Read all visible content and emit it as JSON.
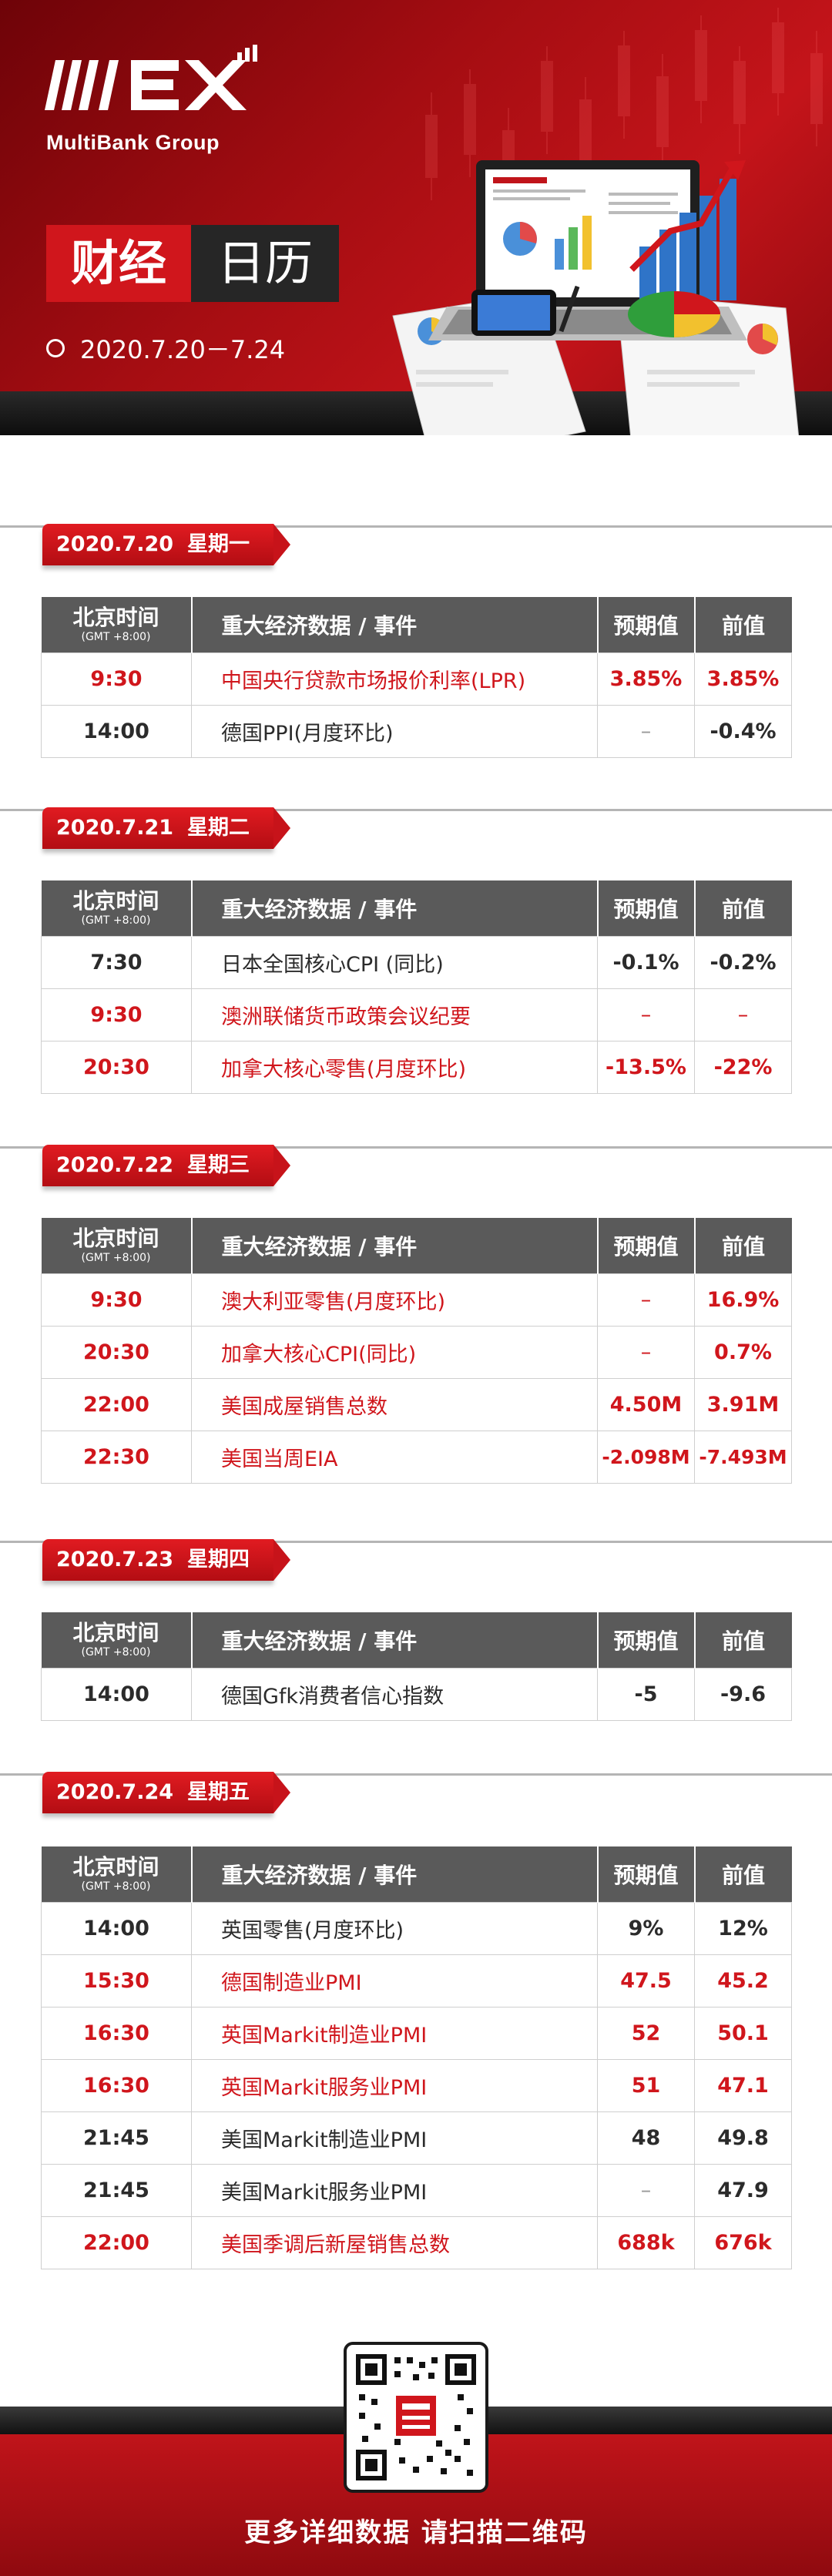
{
  "header": {
    "logo_text": "MultiBank Group",
    "title_part1": "财经",
    "title_part2": "日历",
    "date_range": "2020.7.20－7.24"
  },
  "table_header": {
    "time": "北京时间",
    "time_sub": "(GMT +8:00)",
    "event": "重大经济数据 / 事件",
    "forecast": "预期值",
    "previous": "前值"
  },
  "days": [
    {
      "date": "2020.7.20",
      "weekday": "星期一",
      "rows": [
        {
          "time": "9:30",
          "event": "中国央行贷款市场报价利率(LPR)",
          "forecast": "3.85%",
          "previous": "3.85%",
          "highlight": true
        },
        {
          "time": "14:00",
          "event": "德国PPI(月度环比)",
          "forecast": "–",
          "previous": "-0.4%",
          "highlight": false
        }
      ]
    },
    {
      "date": "2020.7.21",
      "weekday": "星期二",
      "rows": [
        {
          "time": "7:30",
          "event": "日本全国核心CPI (同比)",
          "forecast": "-0.1%",
          "previous": "-0.2%",
          "highlight": false
        },
        {
          "time": "9:30",
          "event": "澳洲联储货币政策会议纪要",
          "forecast": "–",
          "previous": "–",
          "highlight": true
        },
        {
          "time": "20:30",
          "event": "加拿大核心零售(月度环比)",
          "forecast": "-13.5%",
          "previous": "-22%",
          "highlight": true
        }
      ]
    },
    {
      "date": "2020.7.22",
      "weekday": "星期三",
      "rows": [
        {
          "time": "9:30",
          "event": "澳大利亚零售(月度环比)",
          "forecast": "–",
          "previous": "16.9%",
          "highlight": true
        },
        {
          "time": "20:30",
          "event": "加拿大核心CPI(同比)",
          "forecast": "–",
          "previous": "0.7%",
          "highlight": true
        },
        {
          "time": "22:00",
          "event": "美国成屋销售总数",
          "forecast": "4.50M",
          "previous": "3.91M",
          "highlight": true
        },
        {
          "time": "22:30",
          "event": "美国当周EIA",
          "forecast": "-2.098M",
          "previous": "-7.493M",
          "highlight": true
        }
      ]
    },
    {
      "date": "2020.7.23",
      "weekday": "星期四",
      "rows": [
        {
          "time": "14:00",
          "event": "德国Gfk消费者信心指数",
          "forecast": "-5",
          "previous": "-9.6",
          "highlight": false
        }
      ]
    },
    {
      "date": "2020.7.24",
      "weekday": "星期五",
      "rows": [
        {
          "time": "14:00",
          "event": "英国零售(月度环比)",
          "forecast": "9%",
          "previous": "12%",
          "highlight": false
        },
        {
          "time": "15:30",
          "event": "德国制造业PMI",
          "forecast": "47.5",
          "previous": "45.2",
          "highlight": true
        },
        {
          "time": "16:30",
          "event": "英国Markit制造业PMI",
          "forecast": "52",
          "previous": "50.1",
          "highlight": true
        },
        {
          "time": "16:30",
          "event": "英国Markit服务业PMI",
          "forecast": "51",
          "previous": "47.1",
          "highlight": true
        },
        {
          "time": "21:45",
          "event": "美国Markit制造业PMI",
          "forecast": "48",
          "previous": "49.8",
          "highlight": false
        },
        {
          "time": "21:45",
          "event": "美国Markit服务业PMI",
          "forecast": "–",
          "previous": "47.9",
          "highlight": false
        },
        {
          "time": "22:00",
          "event": "美国季调后新屋销售总数",
          "forecast": "688k",
          "previous": "676k",
          "highlight": true
        }
      ]
    }
  ],
  "footer": {
    "text": "更多详细数据 请扫描二维码"
  },
  "colors": {
    "brand_red": "#d0161c",
    "header_gray": "#5a5a5a",
    "dark": "#262626"
  },
  "icons": [
    "mex-logo-icon",
    "calendar-circle-icon",
    "laptop-finance-illustration",
    "qr-code-icon"
  ]
}
